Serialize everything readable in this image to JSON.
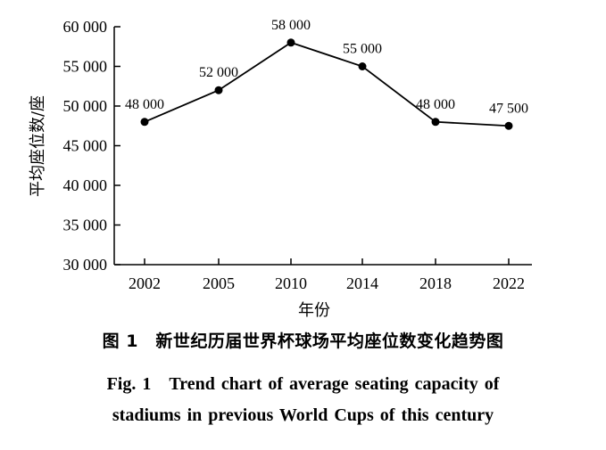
{
  "chart_data": {
    "type": "line",
    "categories": [
      "2002",
      "2005",
      "2010",
      "2014",
      "2018",
      "2022"
    ],
    "values": [
      48000,
      52000,
      58000,
      55000,
      48000,
      47500
    ],
    "data_labels": [
      "48 000",
      "52 000",
      "58 000",
      "55 000",
      "48 000",
      "47 500"
    ],
    "xlabel": "年份",
    "ylabel": "平均座位数/座",
    "ylim": [
      30000,
      60000
    ],
    "yticks": [
      30000,
      35000,
      40000,
      45000,
      50000,
      55000,
      60000
    ],
    "ytick_labels": [
      "30 000",
      "35 000",
      "40 000",
      "45 000",
      "50 000",
      "55 000",
      "60 000"
    ],
    "grid": false,
    "legend": "none",
    "line_color": "#000000"
  },
  "caption": {
    "zh": "图 1　新世纪历届世界杯球场平均座位数变化趋势图",
    "en_line1": "Fig. 1　Trend chart of average seating capacity of",
    "en_line2": "stadiums in previous World Cups of this century"
  }
}
